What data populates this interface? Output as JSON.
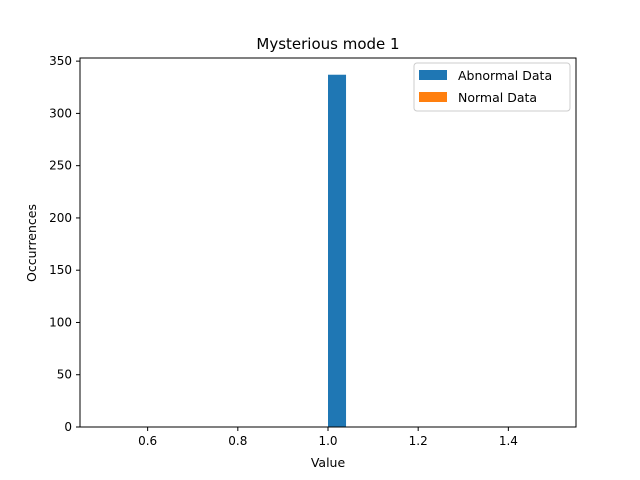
{
  "chart_data": {
    "type": "bar",
    "title": "Mysterious mode 1",
    "xlabel": "Value",
    "ylabel": "Occurrences",
    "xlim": [
      0.45,
      1.55
    ],
    "ylim": [
      0,
      353
    ],
    "xticks": [
      0.6,
      0.8,
      1.0,
      1.2,
      1.4
    ],
    "xtick_labels": [
      "0.6",
      "0.8",
      "1.0",
      "1.2",
      "1.4"
    ],
    "yticks": [
      0,
      50,
      100,
      150,
      200,
      250,
      300,
      350
    ],
    "ytick_labels": [
      "0",
      "50",
      "100",
      "150",
      "200",
      "250",
      "300",
      "350"
    ],
    "grid": false,
    "legend_position": "top-right",
    "series": [
      {
        "name": "Abnormal Data",
        "color": "#1f77b4",
        "bins": [
          {
            "x0": 1.0,
            "x1": 1.04,
            "value": 337
          }
        ]
      },
      {
        "name": "Normal Data",
        "color": "#ff7f0e",
        "bins": []
      }
    ]
  }
}
